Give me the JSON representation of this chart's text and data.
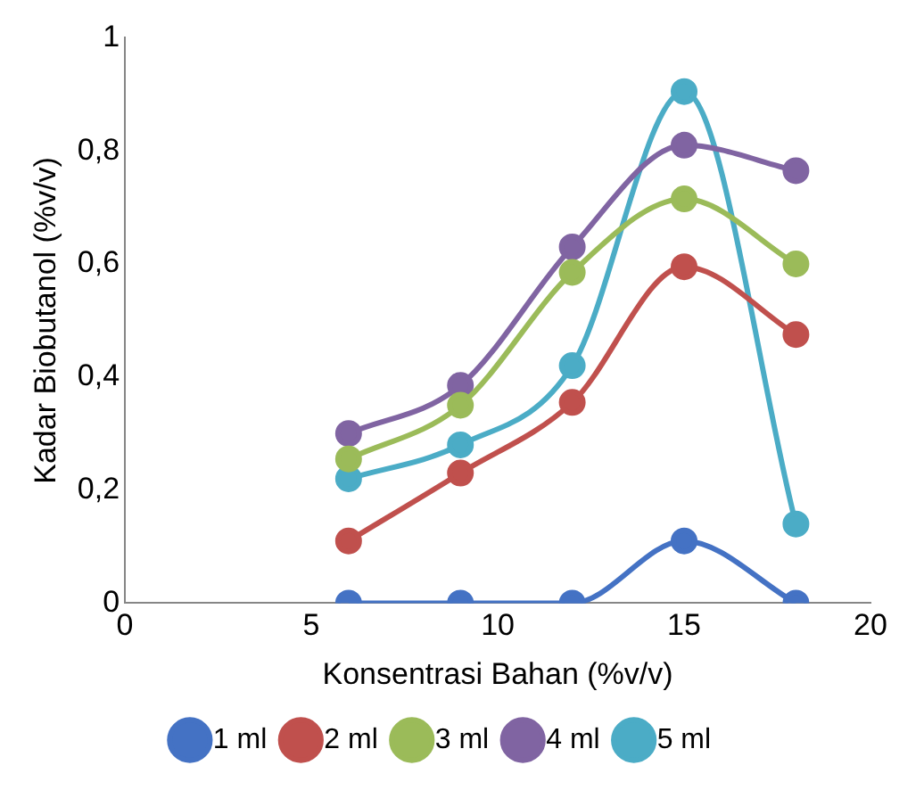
{
  "chart_data": {
    "type": "line",
    "xlabel": "Konsentrasi Bahan (%v/v)",
    "ylabel": "Kadar Biobutanol (%v/v)",
    "x": [
      6,
      9,
      12,
      15,
      18
    ],
    "series": [
      {
        "name": "1 ml",
        "color": "#4472c4",
        "values": [
          0,
          0,
          0,
          0.11,
          0
        ]
      },
      {
        "name": "2 ml",
        "color": "#c0504d",
        "values": [
          0.11,
          0.23,
          0.355,
          0.595,
          0.475
        ]
      },
      {
        "name": "3 ml",
        "color": "#9bbb59",
        "values": [
          0.255,
          0.35,
          0.585,
          0.715,
          0.6
        ]
      },
      {
        "name": "4 ml",
        "color": "#8064a2",
        "values": [
          0.3,
          0.385,
          0.63,
          0.81,
          0.765
        ]
      },
      {
        "name": "5 ml",
        "color": "#4bacc6",
        "values": [
          0.22,
          0.28,
          0.42,
          0.905,
          0.14
        ]
      }
    ],
    "xlim": [
      0,
      20
    ],
    "xticks": [
      0,
      5,
      10,
      15,
      20
    ],
    "ylim": [
      0,
      1
    ],
    "yticks": [
      0,
      {
        "value": 0.2,
        "label": "0,2"
      },
      {
        "value": 0.4,
        "label": "0,4"
      },
      {
        "value": 0.6,
        "label": "0,6"
      },
      {
        "value": 0.8,
        "label": "0,8"
      },
      1
    ],
    "grid": false,
    "legend": "bottom",
    "marker": "circle",
    "line_style": "solid"
  }
}
